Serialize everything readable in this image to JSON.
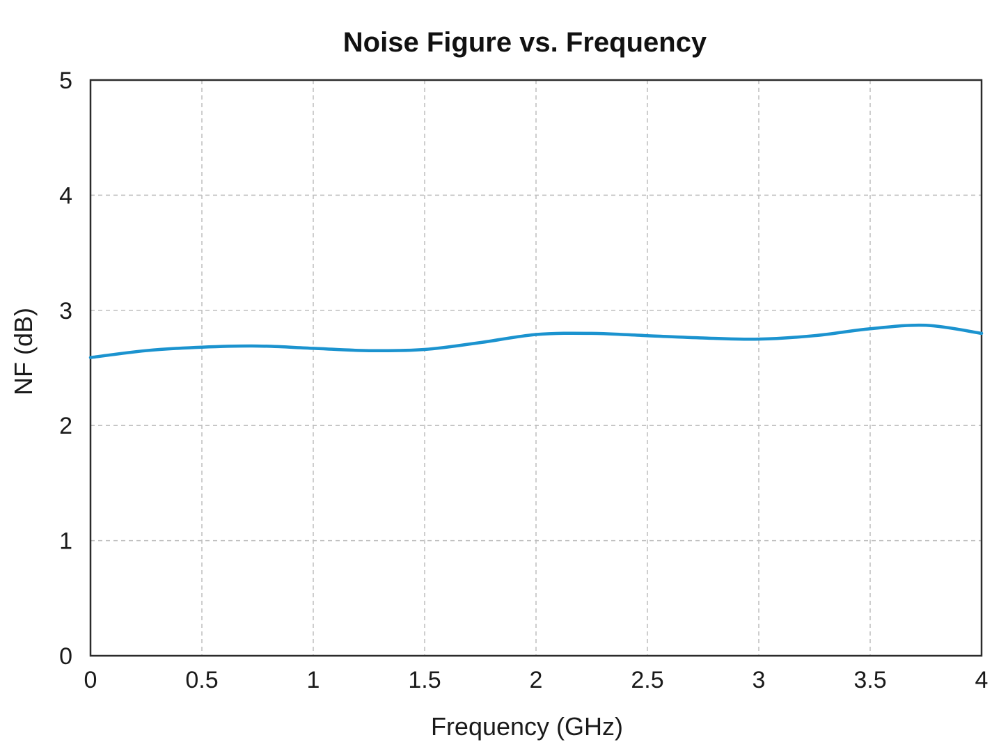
{
  "chart_data": {
    "type": "line",
    "title": "Noise Figure vs. Frequency",
    "xlabel": "Frequency (GHz)",
    "ylabel": "NF (dB)",
    "xlim": [
      0,
      4
    ],
    "ylim": [
      0,
      5
    ],
    "x_ticks": [
      0,
      0.5,
      1,
      1.5,
      2,
      2.5,
      3,
      3.5,
      4
    ],
    "x_tick_labels": [
      "0",
      "0.5",
      "1",
      "1.5",
      "2",
      "2.5",
      "3",
      "3.5",
      "4"
    ],
    "y_ticks": [
      0,
      1,
      2,
      3,
      4,
      5
    ],
    "y_tick_labels": [
      "0",
      "1",
      "2",
      "3",
      "4",
      "5"
    ],
    "grid": true,
    "series": [
      {
        "color": "#1b93cf",
        "x": [
          0,
          0.25,
          0.5,
          0.75,
          1.0,
          1.25,
          1.5,
          1.75,
          2.0,
          2.25,
          2.5,
          2.75,
          3.0,
          3.25,
          3.5,
          3.75,
          4.0
        ],
        "y": [
          2.59,
          2.65,
          2.68,
          2.69,
          2.67,
          2.65,
          2.66,
          2.72,
          2.79,
          2.8,
          2.78,
          2.76,
          2.75,
          2.78,
          2.84,
          2.87,
          2.8
        ]
      }
    ]
  }
}
